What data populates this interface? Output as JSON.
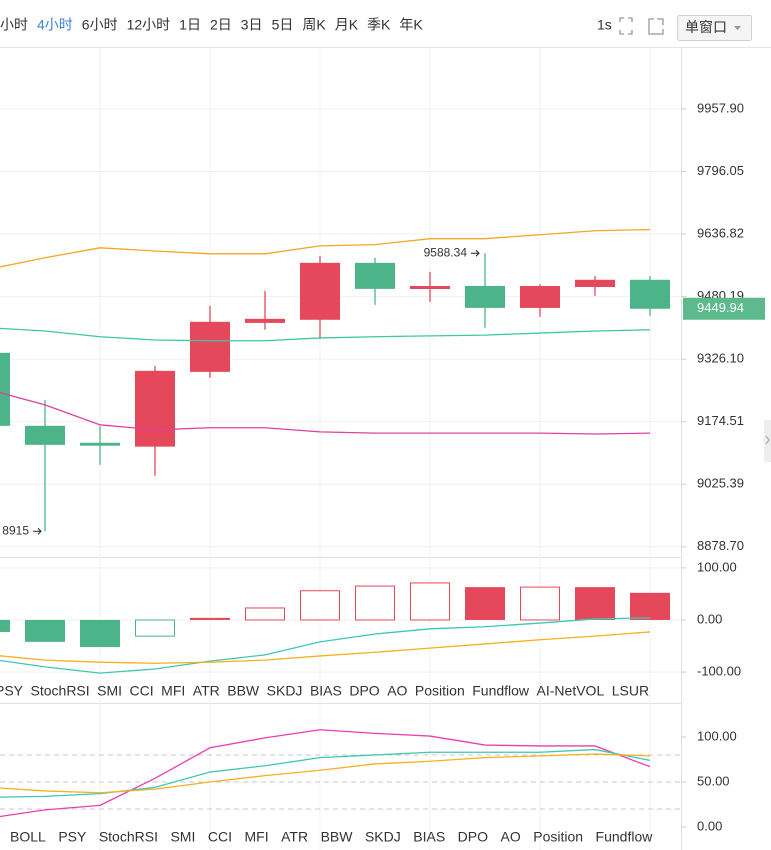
{
  "toolbar": {
    "intervals": [
      "小时",
      "4小时",
      "6小时",
      "12小时",
      "1日",
      "2日",
      "3日",
      "5日",
      "周K",
      "月K",
      "季K",
      "年K"
    ],
    "active": 1,
    "active_color": "#3b7fd9",
    "refresh": "1s",
    "window_mode": "单窗口"
  },
  "chart_data": [
    {
      "type": "candlestick",
      "log_scale": true,
      "grid": true,
      "up_color": "#e5485a",
      "down_color": "#4db388",
      "open": [
        9341.5,
        9164.6,
        9124,
        9114.7,
        9295,
        9415,
        9422.7,
        9564.3,
        9499,
        9506.5,
        9452,
        9504,
        9521.9
      ],
      "high": [
        9345,
        9227.2,
        9164,
        9309.7,
        9457.1,
        9494.4,
        9581.8,
        9577,
        9541.8,
        9588.34,
        9511,
        9531.5,
        9531.5
      ],
      "low": [
        9160,
        8915,
        9071.5,
        9045.4,
        9280.5,
        9398,
        9375.8,
        9459.7,
        9467,
        9403,
        9430,
        9482,
        9432.5
      ],
      "close": [
        9164.6,
        9119,
        9117,
        9297.5,
        9417.7,
        9425,
        9564.3,
        9499.3,
        9506.5,
        9452.1,
        9506.5,
        9521.9,
        9449.94
      ],
      "lines": [
        {
          "color": "#f5a623",
          "values": [
            9549,
            9577,
            9602,
            9594,
            9587,
            9587,
            9607,
            9610,
            9625,
            9625,
            9635,
            9645,
            9648
          ]
        },
        {
          "color": "#3cc8a8",
          "values": [
            9403,
            9395,
            9381,
            9373,
            9371,
            9371,
            9378,
            9381,
            9383,
            9385,
            9390,
            9395,
            9398
          ]
        },
        {
          "color": "#e040a0",
          "values": [
            9251,
            9215,
            9167,
            9155,
            9160,
            9160,
            9150,
            9147,
            9147,
            9147,
            9147,
            9145,
            9147
          ]
        }
      ],
      "ylim": [
        8855,
        10118
      ],
      "yticks": [
        {
          "value": 9957.9,
          "label": "9957.90"
        },
        {
          "value": 9796.05,
          "label": "9796.05"
        },
        {
          "value": 9636.82,
          "label": "9636.82"
        },
        {
          "value": 9480.19,
          "label": "9480.19"
        },
        {
          "value": 9326.1,
          "label": "9326.10"
        },
        {
          "value": 9174.51,
          "label": "9174.51"
        },
        {
          "value": 9025.39,
          "label": "9025.39"
        },
        {
          "value": 8878.7,
          "label": "8878.70"
        }
      ],
      "price_tag_color": "#5dba8c"
    },
    {
      "type": "bar",
      "grid": true,
      "values": [
        -23,
        -42,
        -52,
        -31,
        4,
        23,
        56,
        65,
        71,
        63,
        63,
        63,
        52
      ],
      "hollow": [
        false,
        false,
        false,
        true,
        false,
        true,
        true,
        true,
        true,
        false,
        true,
        false,
        false
      ],
      "up_color": "#e5485a",
      "down_color": "#4db388",
      "lines": [
        {
          "color": "#3cc8b4",
          "values": [
            -75,
            -90,
            -102,
            -94,
            -79,
            -67,
            -42,
            -27,
            -17,
            -13,
            -6,
            2,
            4
          ]
        },
        {
          "color": "#f5b020",
          "values": [
            -67,
            -77,
            -81,
            -83,
            -81,
            -77,
            -69,
            -62,
            -54,
            -46,
            -38,
            -31,
            -23
          ]
        }
      ],
      "ylim": [
        -119,
        115
      ],
      "yticks": [
        {
          "value": 100,
          "label": "100.00"
        },
        {
          "value": 0,
          "label": "0.00"
        },
        {
          "value": -100,
          "label": "-100.00"
        }
      ]
    },
    {
      "type": "line",
      "lines": [
        {
          "color": "#e83fb0",
          "values": [
            10,
            19,
            24,
            54,
            88,
            99,
            108,
            104,
            101,
            91,
            90,
            90,
            67
          ]
        },
        {
          "color": "#3cc8b4",
          "values": [
            33,
            34,
            37,
            44,
            61,
            68,
            77,
            80,
            83,
            83,
            83,
            86,
            74
          ]
        },
        {
          "color": "#f5b020",
          "values": [
            44,
            40,
            38,
            42,
            50,
            57,
            63,
            70,
            73,
            77,
            79,
            81,
            79
          ]
        }
      ],
      "reference_lines": [
        80,
        50,
        20
      ],
      "ylim": [
        -25.6,
        134.4
      ],
      "yticks": [
        {
          "value": 100,
          "label": "100.00"
        },
        {
          "value": 50,
          "label": "50.00"
        },
        {
          "value": 0,
          "label": "0.00"
        }
      ]
    }
  ],
  "indicator_tabs": [
    "PSY",
    "StochRSI",
    "SMI",
    "CCI",
    "MFI",
    "ATR",
    "BBW",
    "SKDJ",
    "BIAS",
    "DPO",
    "AO",
    "Position",
    "Fundflow",
    "AI-NetVOL",
    "LSUR"
  ],
  "indicator_tabs_2": [
    "BOLL",
    "PSY",
    "StochRSI",
    "SMI",
    "CCI",
    "MFI",
    "ATR",
    "BBW",
    "SKDJ",
    "BIAS",
    "DPO",
    "AO",
    "Position",
    "Fundflow"
  ]
}
